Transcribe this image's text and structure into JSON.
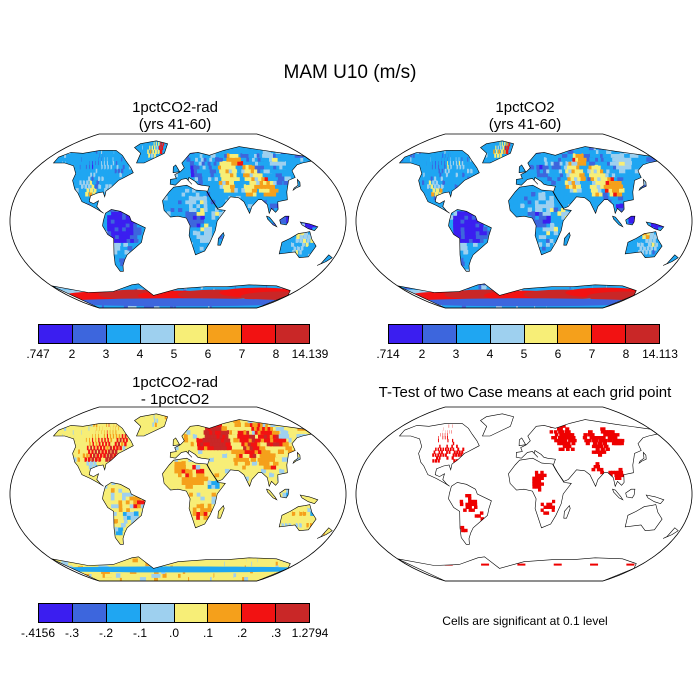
{
  "title": "MAM U10 (m/s)",
  "palette": [
    "#3b1ef0",
    "#3d66dd",
    "#1fa6f2",
    "#9ed0ef",
    "#f7ee77",
    "#f5a01b",
    "#f21212",
    "#c92727"
  ],
  "panels": [
    {
      "title_line1": "1pctCO2-rad",
      "title_line2": "(yrs 41-60)",
      "kind": "field",
      "colorbar_labels": [
        ".747",
        "2",
        "3",
        "4",
        "5",
        "6",
        "7",
        "8",
        "14.139"
      ]
    },
    {
      "title_line1": "1pctCO2",
      "title_line2": "(yrs 41-60)",
      "kind": "field",
      "colorbar_labels": [
        ".714",
        "2",
        "3",
        "4",
        "5",
        "6",
        "7",
        "8",
        "14.113"
      ]
    },
    {
      "title_line1": "1pctCO2-rad",
      "title_line2": "- 1pctCO2",
      "kind": "difference",
      "colorbar_labels": [
        "-.4156",
        "-.3",
        "-.2",
        "-.1",
        ".0",
        ".1",
        ".2",
        ".3",
        "1.2794"
      ]
    },
    {
      "title_line1": "T-Test of two Case means at each grid point",
      "title_line2": "",
      "kind": "significance",
      "note": "Cells are significant at 0.1 level"
    }
  ]
}
